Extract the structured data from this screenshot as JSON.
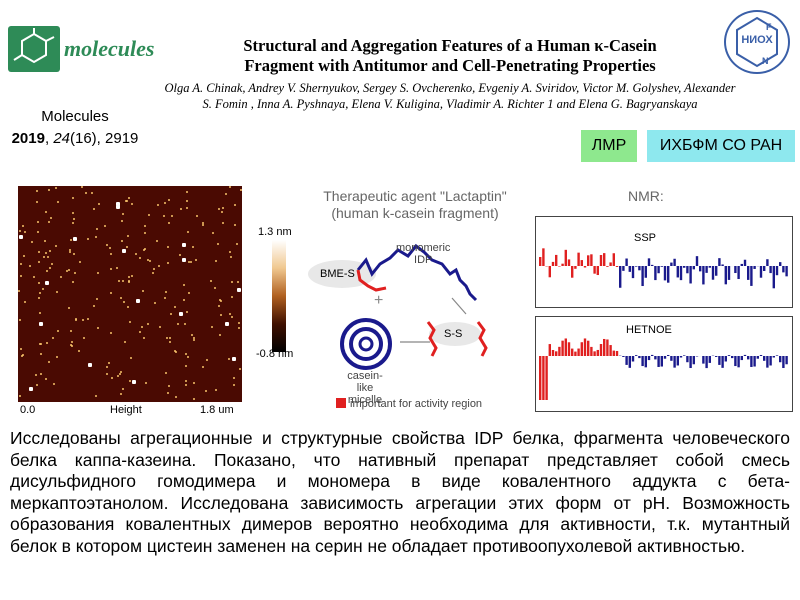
{
  "header": {
    "logo_text": "molecules",
    "journal_name": "Molecules",
    "journal_year": "2019",
    "journal_volume": "24",
    "journal_issue": "(16), 2919",
    "title_line1": "Structural and Aggregation Features of a Human κ-Casein",
    "title_line2": "Fragment with Antitumor and Cell-Penetrating Properties",
    "authors": "Olga A. Chinak, Andrey V. Shernyukov, Sergey S. Ovcherenko, Evgeniy A. Sviridov, Victor M. Golyshev, Alexander S. Fomin , Inna A. Pyshnaya, Elena V. Kuligina, Vladimir A. Richter 1 and Elena G. Bagryanskaya",
    "niox_text": "НИОХ",
    "niox_letters": [
      "F",
      "N"
    ]
  },
  "badges": [
    "ЛМР",
    "ИХБФМ СО РАН"
  ],
  "afm": {
    "colorbar_top": "1.3 nm",
    "colorbar_bottom": "-0.8 nm",
    "axis_left": "0.0",
    "axis_center": "Height",
    "axis_right": "1.8 um"
  },
  "diagram": {
    "title_line1": "Therapeutic agent \"Lactaptin\"",
    "title_line2": "(human k-casein fragment)",
    "label_monomeric": "monomeric",
    "label_idp": "IDP",
    "label_bme": "BME-S",
    "label_plus": "+",
    "label_ss": "S-S",
    "label_micelle_1": "casein-like",
    "label_micelle_2": "micelle",
    "legend": "important for activity region",
    "colors": {
      "important": "#e02020",
      "chain": "#1a1a8c"
    }
  },
  "nmr": {
    "title": "NMR:",
    "panel1": "SSP",
    "panel2": "HETNOE"
  },
  "body_text": "Исследованы агрегационные и структурные свойства IDP белка, фрагмента человеческого белка каппа-казеина. Показано, что нативный препарат представляет собой смесь дисульфидного гомодимера и мономера в виде ковалентного аддукта с бета-меркаптоэтанолом. Исследована зависимость агрегации этих форм от pH.  Возможность образования ковалентных димеров вероятно необходима для активности, т.к. мутантный белок в котором цистеин заменен на серин не обладает противоопухолевой активностью."
}
